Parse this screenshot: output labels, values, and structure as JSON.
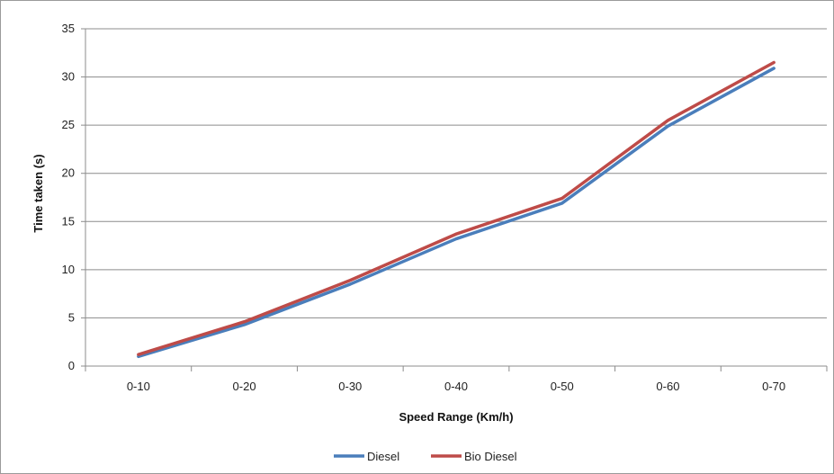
{
  "chart_data": {
    "type": "line",
    "categories": [
      "0-10",
      "0-20",
      "0-30",
      "0-40",
      "0-50",
      "0-60",
      "0-70"
    ],
    "series": [
      {
        "name": "Diesel",
        "color": "#4A7EBB",
        "values": [
          1.0,
          4.3,
          8.5,
          13.2,
          16.9,
          24.9,
          30.9
        ]
      },
      {
        "name": "Bio Diesel",
        "color": "#BE4B48",
        "values": [
          1.2,
          4.6,
          8.9,
          13.7,
          17.4,
          25.5,
          31.5
        ]
      }
    ],
    "xlabel": "Speed Range (Km/h)",
    "ylabel": "Time taken (s)",
    "ylim": [
      0,
      35
    ],
    "yticks": [
      "0",
      "5",
      "10",
      "15",
      "20",
      "25",
      "30",
      "35"
    ],
    "grid": true,
    "legend_position": "bottom"
  }
}
